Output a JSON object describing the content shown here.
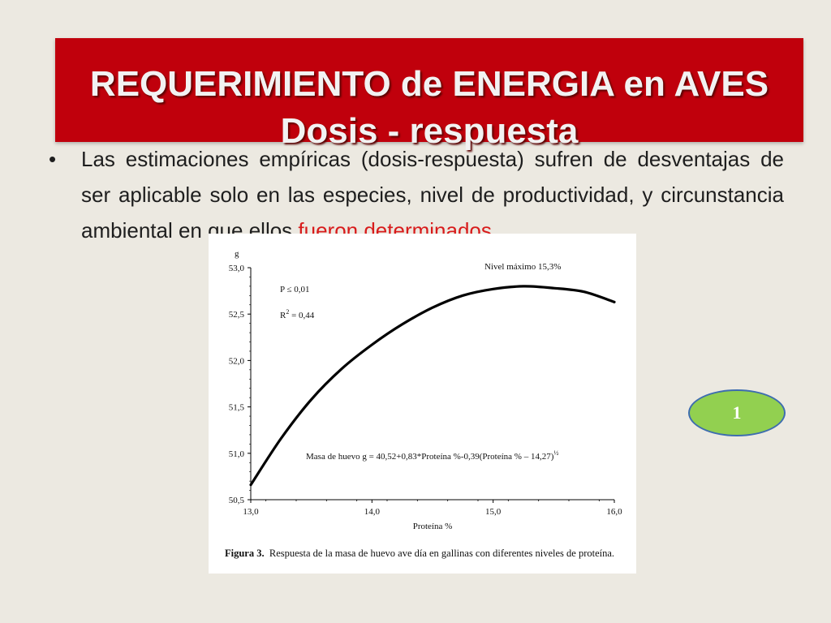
{
  "slide": {
    "title_line1": "REQUERIMIENTO de ENERGIA en AVES",
    "title_line2": "Dosis - respuesta",
    "bullet": {
      "text_main": "Las estimaciones empíricas (dosis-respuesta)  sufren de desventajas de ser aplicable solo en las especies, nivel de productividad, y circunstancia ambiental en que ellos ",
      "text_red": "fueron determinados",
      "text_end": "."
    },
    "badge": "1",
    "colors": {
      "banner": "#C0000C",
      "background": "#ECE9E1",
      "highlight": "#D81B1B",
      "badge_fill": "#92D050",
      "badge_border": "#3E6DAF"
    }
  },
  "chart_data": {
    "type": "line",
    "xlabel": "Proteína %",
    "ylabel": "g",
    "xlim": [
      13.0,
      16.0
    ],
    "ylim": [
      50.5,
      53.0
    ],
    "xticks": [
      "13,0",
      "14,0",
      "15,0",
      "16,0"
    ],
    "yticks": [
      "50,5",
      "51,0",
      "51,5",
      "52,0",
      "52,5",
      "53,0"
    ],
    "x": [
      13.0,
      13.25,
      13.5,
      13.75,
      14.0,
      14.25,
      14.5,
      14.75,
      15.0,
      15.25,
      15.5,
      15.75,
      16.0
    ],
    "y": [
      50.66,
      51.16,
      51.58,
      51.91,
      52.17,
      52.39,
      52.57,
      52.7,
      52.77,
      52.8,
      52.78,
      52.74,
      52.63
    ],
    "annotations": {
      "max_level": "Nivel máximo 15,3%",
      "p_value": "P ≤ 0,01",
      "r2_prefix": "R",
      "r2_sup": "2",
      "r2_suffix": " = 0,44",
      "equation": "Masa de huevo g = 40,52+0,83*Proteína %-0,39(Proteína % – 14,27)",
      "equation_sup": "½"
    },
    "caption_label": "Figura 3.",
    "caption_text": "Respuesta de la masa de huevo ave día en gallinas con diferentes niveles de proteína.",
    "grid": false
  }
}
